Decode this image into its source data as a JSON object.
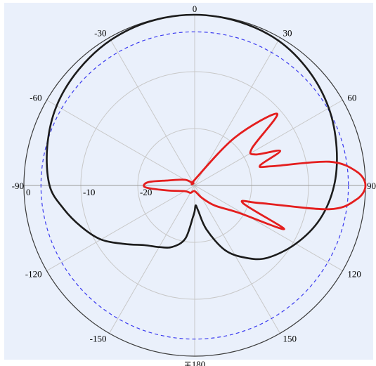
{
  "chart_data": {
    "type": "polar",
    "title": "",
    "angle_unit": "degrees",
    "angle_zero": "top",
    "angle_direction": "clockwise",
    "radial_unit": "dB",
    "radial_range": [
      -30,
      0
    ],
    "radial_rings": [
      -20,
      -10,
      0
    ],
    "radial_tick_labels": [
      "0",
      "-10",
      "-20"
    ],
    "reference_ring": -3,
    "angular_ticks": [
      {
        "angle": 0,
        "label": "0"
      },
      {
        "angle": 30,
        "label": "30"
      },
      {
        "angle": 60,
        "label": "60"
      },
      {
        "angle": 90,
        "label": "90"
      },
      {
        "angle": 120,
        "label": "120"
      },
      {
        "angle": 150,
        "label": "150"
      },
      {
        "angle": 180,
        "label": "∓180"
      },
      {
        "angle": -150,
        "label": "-150"
      },
      {
        "angle": -120,
        "label": "-120"
      },
      {
        "angle": -90,
        "label": "-90"
      },
      {
        "angle": -60,
        "label": "-60"
      },
      {
        "angle": -30,
        "label": "-30"
      }
    ],
    "grid": true,
    "colors": {
      "background": "#eaf0fb",
      "grid": "#c8c8c8",
      "outer_ring": "#3a3a3a",
      "reference_ring": "#3a3af0",
      "tick_text": "#000000"
    },
    "series": [
      {
        "color": "#1c1c1c",
        "points": [
          {
            "angle": 0,
            "value": 0.0
          },
          {
            "angle": 15,
            "value": -0.2
          },
          {
            "angle": 30,
            "value": -0.6
          },
          {
            "angle": 45,
            "value": -1.6
          },
          {
            "angle": 60,
            "value": -2.8
          },
          {
            "angle": 75,
            "value": -4.2
          },
          {
            "angle": 90,
            "value": -5.5
          },
          {
            "angle": 105,
            "value": -7.2
          },
          {
            "angle": 120,
            "value": -9.5
          },
          {
            "angle": 135,
            "value": -12.0
          },
          {
            "angle": 145,
            "value": -14.5
          },
          {
            "angle": 155,
            "value": -17.5
          },
          {
            "angle": 165,
            "value": -22.0
          },
          {
            "angle": 172,
            "value": -25.5
          },
          {
            "angle": 177,
            "value": -26.5
          },
          {
            "angle": 180,
            "value": -25.5
          },
          {
            "angle": -177,
            "value": -24.5
          },
          {
            "angle": -170,
            "value": -20.5
          },
          {
            "angle": -160,
            "value": -18.5
          },
          {
            "angle": -150,
            "value": -17.5
          },
          {
            "angle": -140,
            "value": -16.3
          },
          {
            "angle": -130,
            "value": -14.0
          },
          {
            "angle": -120,
            "value": -11.0
          },
          {
            "angle": -110,
            "value": -8.8
          },
          {
            "angle": -100,
            "value": -6.6
          },
          {
            "angle": -90,
            "value": -4.5
          },
          {
            "angle": -75,
            "value": -3.2
          },
          {
            "angle": -60,
            "value": -2.0
          },
          {
            "angle": -45,
            "value": -1.2
          },
          {
            "angle": -30,
            "value": -0.5
          },
          {
            "angle": -15,
            "value": -0.1
          }
        ]
      },
      {
        "color": "#e41e1e",
        "points": [
          {
            "angle": 0,
            "value": -29
          },
          {
            "angle": 40,
            "value": -19
          },
          {
            "angle": 49,
            "value": -10.8
          },
          {
            "angle": 57,
            "value": -18
          },
          {
            "angle": 63,
            "value": -18
          },
          {
            "angle": 68,
            "value": -13.8
          },
          {
            "angle": 73,
            "value": -18
          },
          {
            "angle": 76,
            "value": -16
          },
          {
            "angle": 80,
            "value": -6
          },
          {
            "angle": 85,
            "value": -1.5
          },
          {
            "angle": 90,
            "value": 0
          },
          {
            "angle": 95,
            "value": -1.5
          },
          {
            "angle": 100,
            "value": -6
          },
          {
            "angle": 105,
            "value": -18
          },
          {
            "angle": 110,
            "value": -21
          },
          {
            "angle": 116,
            "value": -12.5
          },
          {
            "angle": 122,
            "value": -21
          },
          {
            "angle": 135,
            "value": -25
          },
          {
            "angle": 150,
            "value": -27.5
          },
          {
            "angle": 180,
            "value": -29
          },
          {
            "angle": -150,
            "value": -28.5
          },
          {
            "angle": -120,
            "value": -28
          },
          {
            "angle": -100,
            "value": -25
          },
          {
            "angle": -92,
            "value": -21.3
          },
          {
            "angle": -86,
            "value": -21.8
          },
          {
            "angle": -80,
            "value": -25
          },
          {
            "angle": -60,
            "value": -28
          },
          {
            "angle": -30,
            "value": -29.5
          }
        ]
      }
    ]
  }
}
